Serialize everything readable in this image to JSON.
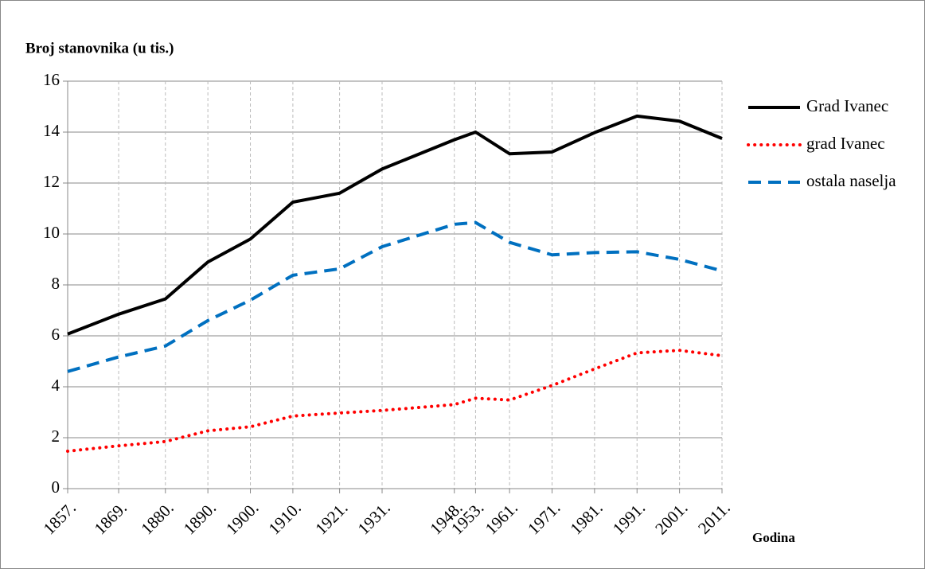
{
  "chart_data": {
    "type": "line",
    "ylabel": "Broj stanovnika (u tis.)",
    "xlabel": "Godina",
    "x": [
      1857,
      1869,
      1880,
      1890,
      1900,
      1910,
      1921,
      1931,
      1948,
      1953,
      1961,
      1971,
      1981,
      1991,
      2001,
      2011
    ],
    "series": [
      {
        "name": "Grad Ivanec",
        "color": "#000000",
        "values": [
          6.07,
          6.85,
          7.45,
          8.9,
          9.8,
          11.25,
          11.6,
          12.55,
          13.7,
          14.0,
          13.15,
          13.22,
          13.98,
          14.63,
          14.43,
          13.75
        ]
      },
      {
        "name": "grad Ivanec",
        "color": "#ff0000",
        "values": [
          1.47,
          1.68,
          1.85,
          2.27,
          2.43,
          2.85,
          2.97,
          3.07,
          3.3,
          3.55,
          3.48,
          4.05,
          4.7,
          5.33,
          5.43,
          5.22
        ]
      },
      {
        "name": "ostala naselja",
        "color": "#0070c0",
        "values": [
          4.6,
          5.17,
          5.6,
          6.6,
          7.4,
          8.38,
          8.63,
          9.5,
          10.38,
          10.45,
          9.67,
          9.18,
          9.27,
          9.3,
          9.0,
          8.55
        ]
      }
    ],
    "xlim": [
      1857,
      2011
    ],
    "xticks": [
      {
        "value": 1857,
        "label": "1857."
      },
      {
        "value": 1869,
        "label": "1869."
      },
      {
        "value": 1880,
        "label": "1880."
      },
      {
        "value": 1890,
        "label": "1890."
      },
      {
        "value": 1900,
        "label": "1900."
      },
      {
        "value": 1910,
        "label": "1910."
      },
      {
        "value": 1921,
        "label": "1921."
      },
      {
        "value": 1931,
        "label": "1931."
      },
      {
        "value": 1948,
        "label": "1948."
      },
      {
        "value": 1953,
        "label": "1953."
      },
      {
        "value": 1961,
        "label": "1961."
      },
      {
        "value": 1971,
        "label": "1971."
      },
      {
        "value": 1981,
        "label": "1981."
      },
      {
        "value": 1991,
        "label": "1991."
      },
      {
        "value": 2001,
        "label": "2001."
      },
      {
        "value": 2011,
        "label": "2011."
      }
    ],
    "ylim": [
      0,
      16
    ],
    "yticks": [
      0,
      2,
      4,
      6,
      8,
      10,
      12,
      14,
      16
    ],
    "grid": true,
    "legend": "right"
  }
}
